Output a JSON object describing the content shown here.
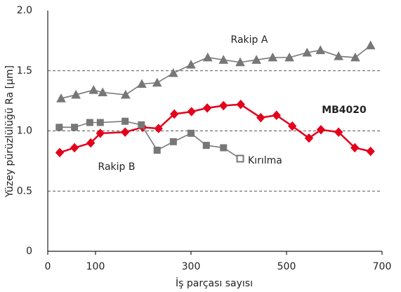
{
  "chart_data": {
    "type": "line",
    "xlabel": "İş parçası sayısı",
    "ylabel": "Yüzey pürüzlülüğü Ra [µm]",
    "xlim": [
      0,
      700
    ],
    "xticks": [
      0,
      100,
      300,
      500,
      700
    ],
    "ylim": [
      0,
      2.0
    ],
    "yticks": [
      0,
      0.5,
      {
        "value": 1.0,
        "label": "1.0"
      },
      1.5,
      {
        "value": 2.0,
        "label": "2.0"
      }
    ],
    "grid": true,
    "series": [
      {
        "name": "Rakip A",
        "color": "#777777",
        "marker": "triangle",
        "x": [
          28,
          59,
          96,
          115,
          163,
          197,
          229,
          263,
          300,
          335,
          368,
          403,
          437,
          471,
          506,
          543,
          571,
          609,
          644,
          676
        ],
        "values": [
          1.27,
          1.3,
          1.34,
          1.32,
          1.3,
          1.39,
          1.4,
          1.48,
          1.55,
          1.61,
          1.59,
          1.57,
          1.59,
          1.61,
          1.61,
          1.65,
          1.67,
          1.62,
          1.61,
          1.71
        ]
      },
      {
        "name": "MB4020",
        "color": "#e3001b",
        "marker": "diamond",
        "x": [
          25,
          56,
          90,
          110,
          162,
          199,
          232,
          265,
          301,
          334,
          368,
          404,
          446,
          479,
          512,
          547,
          572,
          609,
          643,
          676
        ],
        "values": [
          0.82,
          0.86,
          0.9,
          0.98,
          0.99,
          1.03,
          1.02,
          1.14,
          1.16,
          1.19,
          1.21,
          1.22,
          1.11,
          1.13,
          1.04,
          0.94,
          1.01,
          0.99,
          0.86,
          0.83
        ]
      },
      {
        "name": "Rakip B",
        "color": "#777777",
        "marker": "square",
        "x": [
          24,
          56,
          88,
          110,
          162,
          196,
          229,
          263,
          300,
          332,
          368,
          403
        ],
        "values": [
          1.03,
          1.03,
          1.07,
          1.07,
          1.08,
          1.05,
          0.84,
          0.91,
          0.98,
          0.88,
          0.86,
          0.77
        ]
      }
    ],
    "annotation": "Kırılma"
  }
}
